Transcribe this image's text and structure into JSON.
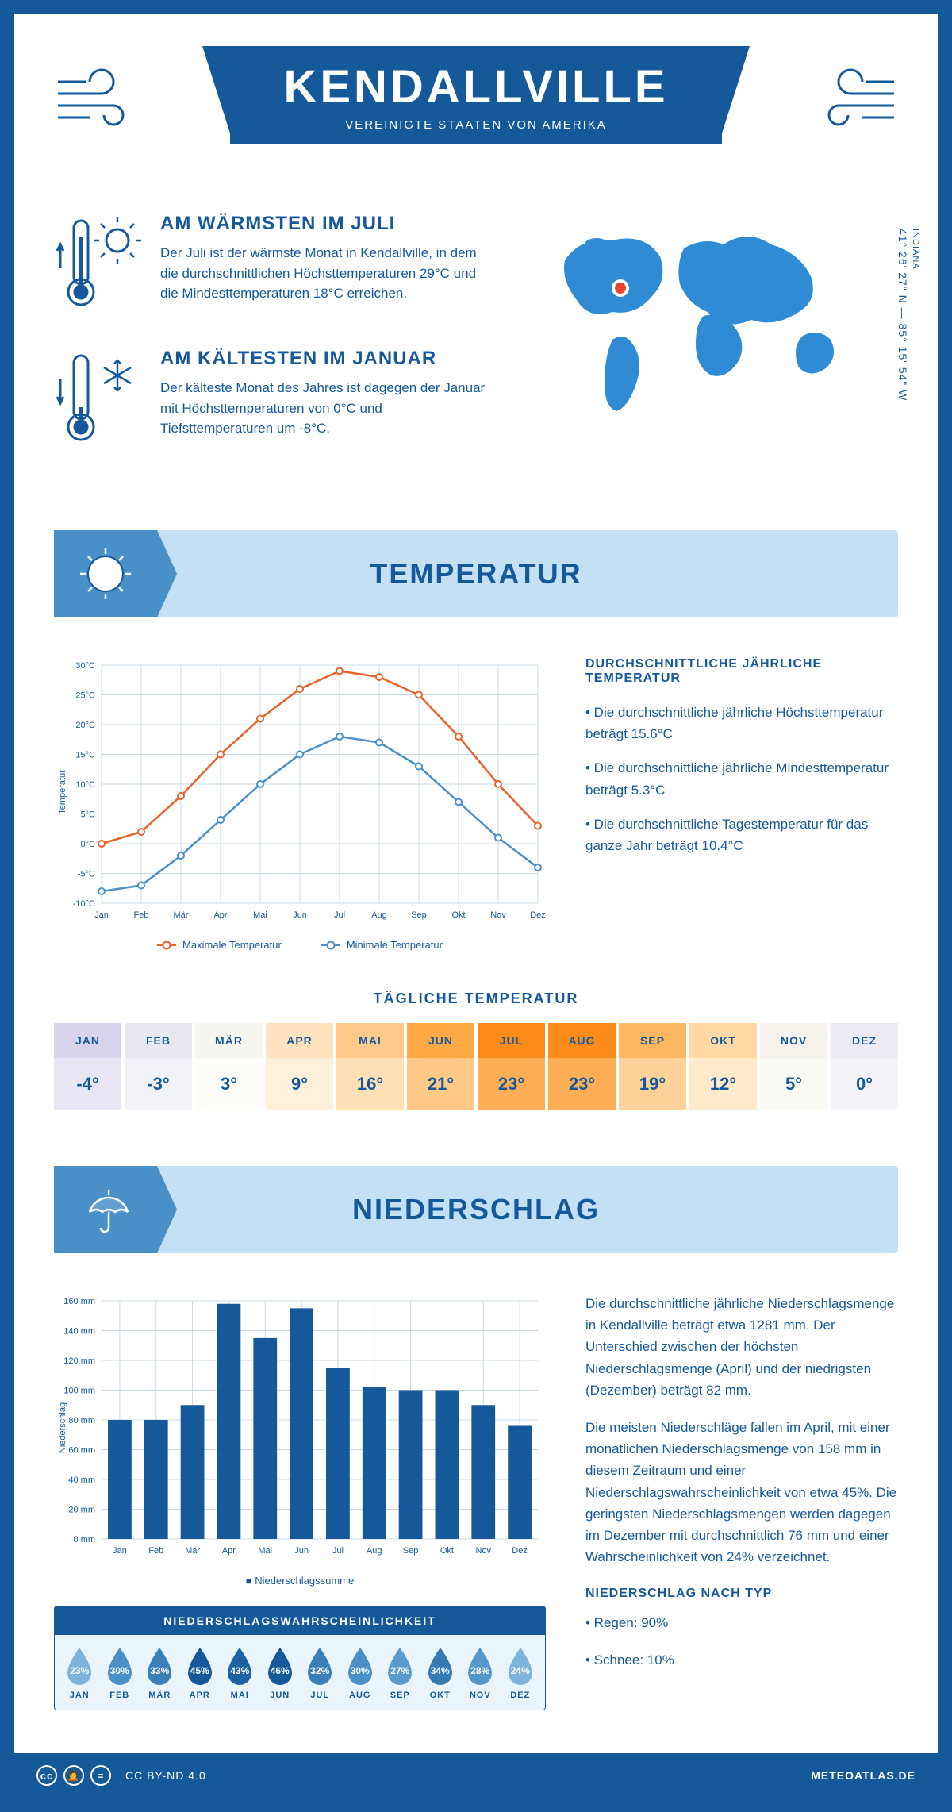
{
  "header": {
    "city": "KENDALLVILLE",
    "country": "VEREINIGTE STAATEN VON AMERIKA"
  },
  "location": {
    "state": "INDIANA",
    "coords": "41° 26' 27\" N — 85° 15' 54\" W"
  },
  "warmest": {
    "title": "AM WÄRMSTEN IM JULI",
    "text": "Der Juli ist der wärmste Monat in Kendallville, in dem die durchschnittlichen Höchsttemperaturen 29°C und die Mindesttemperaturen 18°C erreichen."
  },
  "coldest": {
    "title": "AM KÄLTESTEN IM JANUAR",
    "text": "Der kälteste Monat des Jahres ist dagegen der Januar mit Höchsttemperaturen von 0°C und Tiefsttemperaturen um -8°C."
  },
  "section_temp": "TEMPERATUR",
  "section_precip": "NIEDERSCHLAG",
  "temp_chart": {
    "y_label": "Temperatur",
    "months": [
      "Jan",
      "Feb",
      "Mär",
      "Apr",
      "Mai",
      "Jun",
      "Jul",
      "Aug",
      "Sep",
      "Okt",
      "Nov",
      "Dez"
    ],
    "y_ticks": [
      "-10°C",
      "-5°C",
      "0°C",
      "5°C",
      "10°C",
      "15°C",
      "20°C",
      "25°C",
      "30°C"
    ],
    "y_min": -10,
    "y_max": 30,
    "y_step": 5,
    "max_series": [
      0,
      2,
      8,
      15,
      21,
      26,
      29,
      28,
      25,
      18,
      10,
      3
    ],
    "min_series": [
      -8,
      -7,
      -2,
      4,
      10,
      15,
      18,
      17,
      13,
      7,
      1,
      -4
    ],
    "max_color": "#e8622c",
    "min_color": "#4a90c8",
    "grid_color": "#c8d8e8",
    "bg": "#ffffff",
    "legend_max": "Maximale Temperatur",
    "legend_min": "Minimale Temperatur"
  },
  "temp_info": {
    "title": "DURCHSCHNITTLICHE JÄHRLICHE TEMPERATUR",
    "b1": "• Die durchschnittliche jährliche Höchsttemperatur beträgt 15.6°C",
    "b2": "• Die durchschnittliche jährliche Mindesttemperatur beträgt 5.3°C",
    "b3": "• Die durchschnittliche Tagestemperatur für das ganze Jahr beträgt 10.4°C"
  },
  "daily_temp": {
    "title": "TÄGLICHE TEMPERATUR",
    "cells": [
      {
        "m": "JAN",
        "v": "-4°",
        "h": "#d9d4ee",
        "b": "#e8e5f5"
      },
      {
        "m": "FEB",
        "v": "-3°",
        "h": "#e8e8f3",
        "b": "#f2f2f9"
      },
      {
        "m": "MÄR",
        "v": "3°",
        "h": "#f7f5f0",
        "b": "#fdfcf8"
      },
      {
        "m": "APR",
        "v": "9°",
        "h": "#ffe3bf",
        "b": "#fff0dc"
      },
      {
        "m": "MAI",
        "v": "16°",
        "h": "#ffc98a",
        "b": "#ffdfb5"
      },
      {
        "m": "JUN",
        "v": "21°",
        "h": "#ffa947",
        "b": "#ffc885"
      },
      {
        "m": "JUL",
        "v": "23°",
        "h": "#ff8c1a",
        "b": "#ffae56"
      },
      {
        "m": "AUG",
        "v": "23°",
        "h": "#ff8c1a",
        "b": "#ffae56"
      },
      {
        "m": "SEP",
        "v": "19°",
        "h": "#ffb660",
        "b": "#ffd199"
      },
      {
        "m": "OKT",
        "v": "12°",
        "h": "#ffd8a3",
        "b": "#ffeacb"
      },
      {
        "m": "NOV",
        "v": "5°",
        "h": "#f5f2eb",
        "b": "#fbf9f4"
      },
      {
        "m": "DEZ",
        "v": "0°",
        "h": "#eeeaf4",
        "b": "#f6f3fa"
      }
    ]
  },
  "precip_chart": {
    "y_label": "Niederschlag",
    "months": [
      "Jan",
      "Feb",
      "Mär",
      "Apr",
      "Mai",
      "Jun",
      "Jul",
      "Aug",
      "Sep",
      "Okt",
      "Nov",
      "Dez"
    ],
    "y_ticks": [
      "0 mm",
      "20 mm",
      "40 mm",
      "60 mm",
      "80 mm",
      "100 mm",
      "120 mm",
      "140 mm",
      "160 mm"
    ],
    "y_min": 0,
    "y_max": 160,
    "y_step": 20,
    "values": [
      80,
      80,
      90,
      158,
      135,
      155,
      115,
      102,
      100,
      100,
      90,
      76
    ],
    "bar_color": "#15599b",
    "grid_color": "#c8d8e8",
    "legend": "Niederschlagssumme"
  },
  "precip_info": {
    "p1": "Die durchschnittliche jährliche Niederschlagsmenge in Kendallville beträgt etwa 1281 mm. Der Unterschied zwischen der höchsten Niederschlagsmenge (April) und der niedrigsten (Dezember) beträgt 82 mm.",
    "p2": "Die meisten Niederschläge fallen im April, mit einer monatlichen Niederschlagsmenge von 158 mm in diesem Zeitraum und einer Niederschlagswahrscheinlichkeit von etwa 45%. Die geringsten Niederschlagsmengen werden dagegen im Dezember mit durchschnittlich 76 mm und einer Wahrscheinlichkeit von 24% verzeichnet.",
    "type_title": "NIEDERSCHLAG NACH TYP",
    "type1": "• Regen: 90%",
    "type2": "• Schnee: 10%"
  },
  "prob": {
    "title": "NIEDERSCHLAGSWAHRSCHEINLICHKEIT",
    "items": [
      {
        "m": "JAN",
        "v": "23%",
        "c": "#7db4dd"
      },
      {
        "m": "FEB",
        "v": "30%",
        "c": "#4a90c8"
      },
      {
        "m": "MÄR",
        "v": "33%",
        "c": "#3a7fb8"
      },
      {
        "m": "APR",
        "v": "45%",
        "c": "#15599b"
      },
      {
        "m": "MAI",
        "v": "43%",
        "c": "#1c62a5"
      },
      {
        "m": "JUN",
        "v": "46%",
        "c": "#15599b"
      },
      {
        "m": "JUL",
        "v": "32%",
        "c": "#3a7fb8"
      },
      {
        "m": "AUG",
        "v": "30%",
        "c": "#4a90c8"
      },
      {
        "m": "SEP",
        "v": "27%",
        "c": "#5a9bcf"
      },
      {
        "m": "OKT",
        "v": "34%",
        "c": "#347ab3"
      },
      {
        "m": "NOV",
        "v": "28%",
        "c": "#5497cc"
      },
      {
        "m": "DEZ",
        "v": "24%",
        "c": "#7db4dd"
      }
    ]
  },
  "footer": {
    "license": "CC BY-ND 4.0",
    "site": "METEOATLAS.DE"
  },
  "colors": {
    "primary": "#15599b",
    "light": "#c4e0f5",
    "mid": "#4a90c8"
  }
}
